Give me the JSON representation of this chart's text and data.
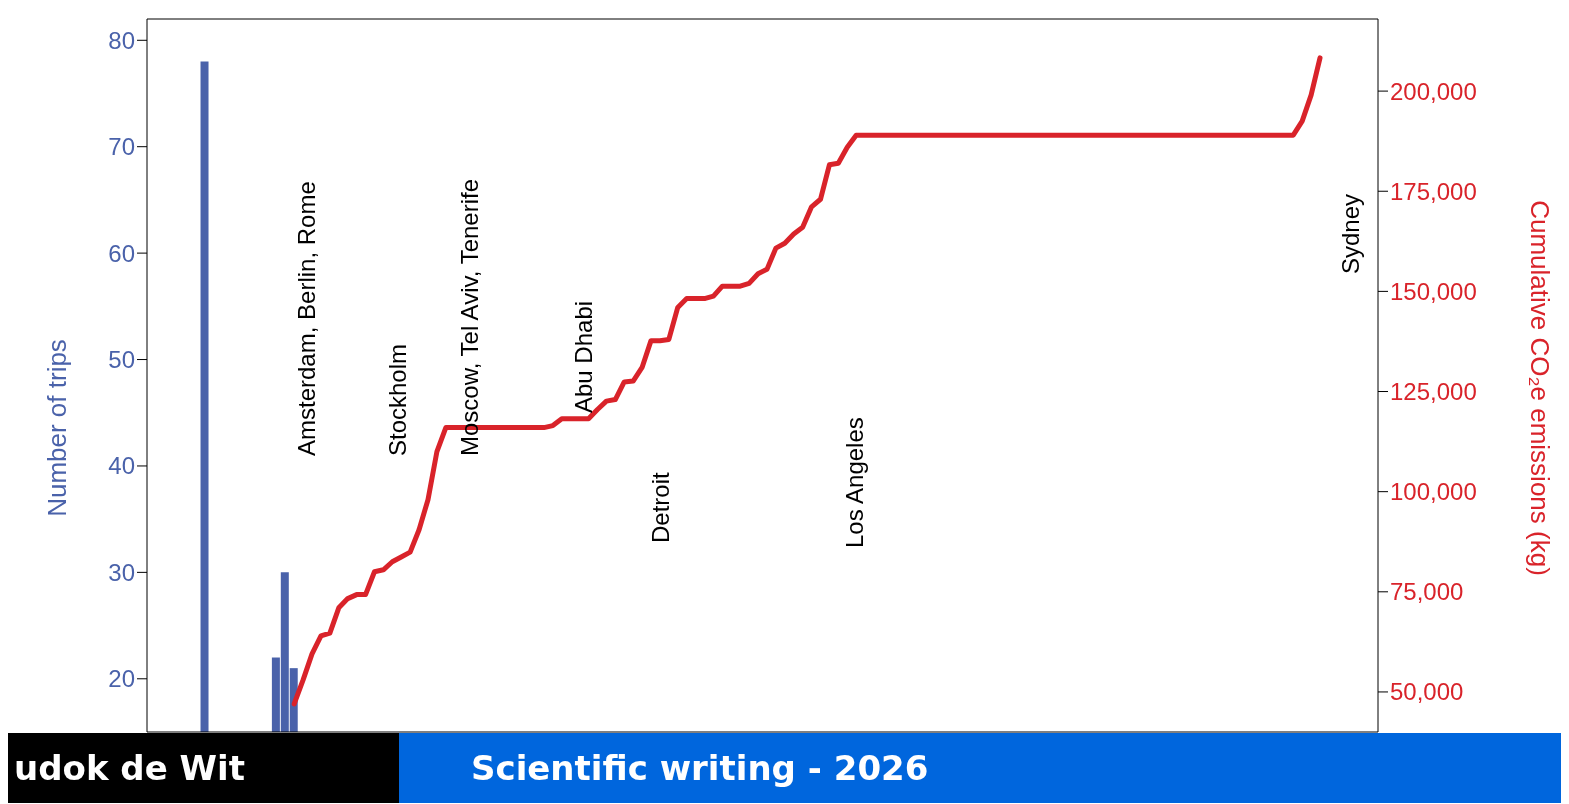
{
  "chart_data": {
    "type": "bar",
    "ylabel": "Number of trips",
    "y2label": "Cumulative CO₂e emissions (kg)",
    "categories": [
      null,
      null,
      null,
      null,
      null,
      null,
      null,
      null,
      null,
      null,
      null,
      null,
      null,
      null,
      null,
      null,
      null,
      null,
      null,
      null,
      null,
      null,
      null,
      null,
      null,
      null,
      null,
      null,
      null,
      null,
      null,
      null,
      null,
      null,
      null,
      null,
      null,
      null,
      null,
      null,
      null,
      null,
      null,
      null,
      null,
      null,
      null,
      null,
      null,
      null,
      null,
      null,
      null,
      null,
      null,
      null,
      null,
      null,
      null,
      null,
      null,
      null,
      null,
      null,
      null,
      null,
      null,
      null,
      null,
      null,
      null,
      null,
      null,
      null,
      null,
      null,
      null,
      null,
      null,
      null,
      null,
      null,
      null,
      null,
      null,
      null,
      null,
      null,
      null,
      null,
      null,
      null,
      null,
      null,
      null,
      null,
      null,
      null,
      null,
      null,
      null,
      null,
      null,
      null,
      null,
      null,
      null,
      null,
      null,
      null,
      null,
      null,
      null,
      null,
      null,
      null,
      null,
      null,
      null,
      null,
      null,
      null,
      null,
      null,
      null,
      null,
      null,
      null,
      null,
      null,
      null,
      null,
      null,
      null,
      null,
      null,
      null,
      null
    ],
    "series": [
      {
        "color": "#4a62aa",
        "values": [
          null,
          null,
          null,
          null,
          null,
          null,
          78,
          null,
          null,
          null,
          null,
          null,
          null,
          null,
          22,
          30,
          21,
          null,
          null,
          null,
          null,
          null,
          null,
          null,
          null,
          null,
          null,
          null,
          null,
          null,
          null,
          null,
          null,
          null,
          null,
          null,
          null,
          null,
          null,
          null,
          null,
          null,
          null,
          null,
          null,
          null,
          null,
          null,
          null,
          null,
          null,
          null,
          null,
          null,
          null,
          null,
          null,
          null,
          null,
          null,
          null,
          null,
          null,
          null,
          null,
          null,
          null,
          null,
          null,
          null,
          null,
          null,
          null,
          null,
          null,
          null,
          null,
          null,
          null,
          null,
          null,
          null,
          null,
          null,
          null,
          null,
          null,
          null,
          null,
          null,
          null,
          null,
          null,
          null,
          null,
          null,
          null,
          null,
          null,
          null,
          null,
          null,
          null,
          null,
          null,
          null,
          null,
          null,
          null,
          null,
          null,
          null,
          null,
          null,
          null,
          null,
          null,
          null,
          null,
          null,
          null,
          null,
          null,
          null,
          null,
          null,
          null,
          null,
          null,
          null,
          null,
          null,
          null,
          null,
          null,
          null,
          null,
          null
        ]
      },
      {
        "type": "line",
        "axis": "y2",
        "color": "#d9232a",
        "values": [
          null,
          null,
          null,
          null,
          null,
          null,
          null,
          null,
          null,
          null,
          null,
          null,
          null,
          null,
          null,
          null,
          47000,
          53000,
          59500,
          64000,
          64700,
          71000,
          73300,
          74300,
          74300,
          80000,
          80500,
          82500,
          83700,
          84900,
          90500,
          98000,
          110000,
          116000,
          116000,
          116000,
          116000,
          116000,
          116000,
          116000,
          116000,
          116000,
          116000,
          116000,
          116000,
          116500,
          118200,
          118200,
          118200,
          118200,
          120500,
          122600,
          123000,
          127400,
          127600,
          131000,
          137700,
          137700,
          138000,
          146000,
          148200,
          148200,
          148200,
          148800,
          151300,
          151300,
          151300,
          152000,
          154400,
          155500,
          160800,
          162000,
          164300,
          166000,
          171100,
          173000,
          181600,
          182000,
          186000,
          189000,
          189000,
          189000,
          189000,
          189000,
          189000,
          189000,
          189000,
          189000,
          189000,
          189000,
          189000,
          189000,
          189000,
          189000,
          189000,
          189000,
          189000,
          189000,
          189000,
          189000,
          189000,
          189000,
          189000,
          189000,
          189000,
          189000,
          189000,
          189000,
          189000,
          189000,
          189000,
          189000,
          189000,
          189000,
          189000,
          189000,
          189000,
          189000,
          189000,
          189000,
          189000,
          189000,
          189000,
          189000,
          189000,
          189000,
          189000,
          189000,
          189000,
          192500,
          199000,
          208300,
          null,
          null,
          null,
          null,
          null,
          null
        ]
      }
    ],
    "ylim": [
      15,
      82
    ],
    "yticks": [
      20,
      30,
      40,
      50,
      60,
      70,
      80
    ],
    "y2lim": [
      40000,
      218000
    ],
    "y2ticks": [
      {
        "value": 50000,
        "label": "50,000"
      },
      {
        "value": 75000,
        "label": "75,000"
      },
      {
        "value": 100000,
        "label": "100,000"
      },
      {
        "value": 125000,
        "label": "125,000"
      },
      {
        "value": 150000,
        "label": "150,000"
      },
      {
        "value": 175000,
        "label": "175,000"
      },
      {
        "value": 200000,
        "label": "200,000"
      }
    ],
    "tick_labels": "y",
    "marker": "none",
    "line_style": "solid",
    "annotations": [
      "Amsterdam, Berlin, Rome",
      "Stockholm",
      "Moscow, Tel Aviv, Tenerife",
      "Abu Dhabi",
      "Detroit",
      "Los Angeles",
      "Sydney",
      "udok de Wit",
      "Scientific writing - 2026"
    ]
  }
}
